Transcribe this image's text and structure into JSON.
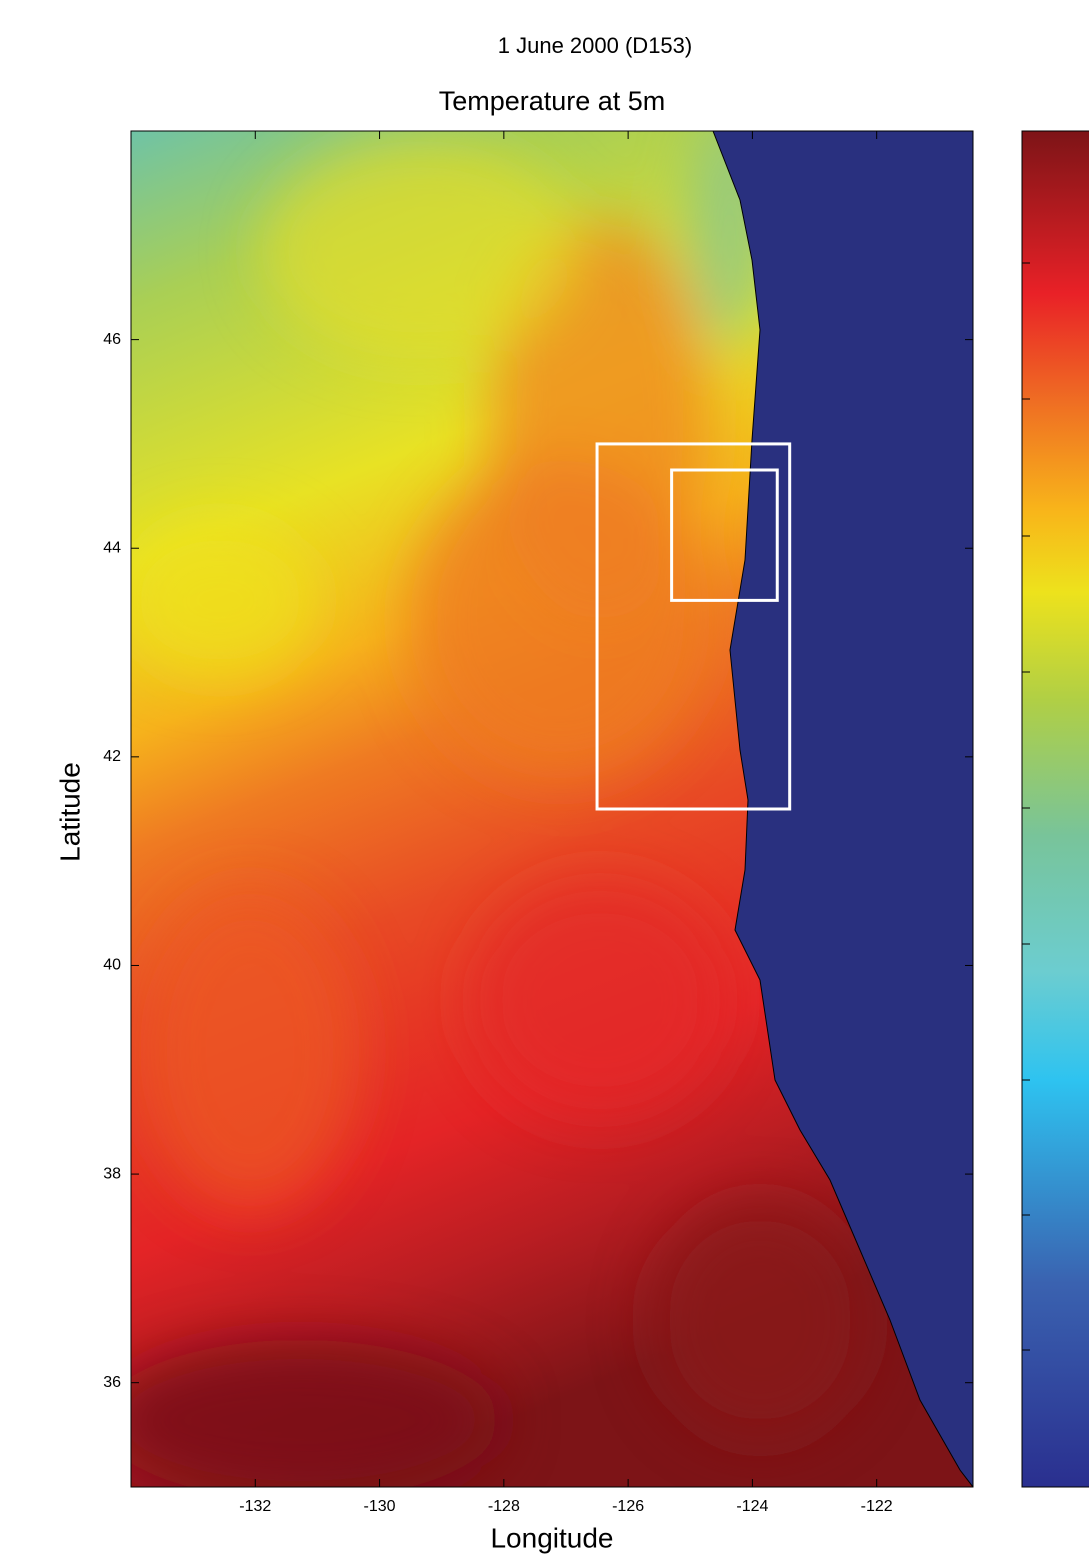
{
  "title": "1 June 2000 (D153)",
  "chart_data": {
    "type": "heatmap",
    "title": "Temperature at 5m",
    "x_label": "Longitude",
    "y_label": "Latitude",
    "xlim": [
      -134,
      -120.45
    ],
    "ylim": [
      35,
      48
    ],
    "xticks": [
      -132,
      -130,
      -128,
      -126,
      -124,
      -122
    ],
    "yticks": [
      36,
      38,
      40,
      42,
      44,
      46
    ],
    "regions": [
      {
        "lon": [
          -126.5,
          -123.4
        ],
        "lat": [
          41.5,
          45.0
        ]
      },
      {
        "lon": [
          -125.3,
          -123.6
        ],
        "lat": [
          43.5,
          44.75
        ]
      }
    ]
  }
}
